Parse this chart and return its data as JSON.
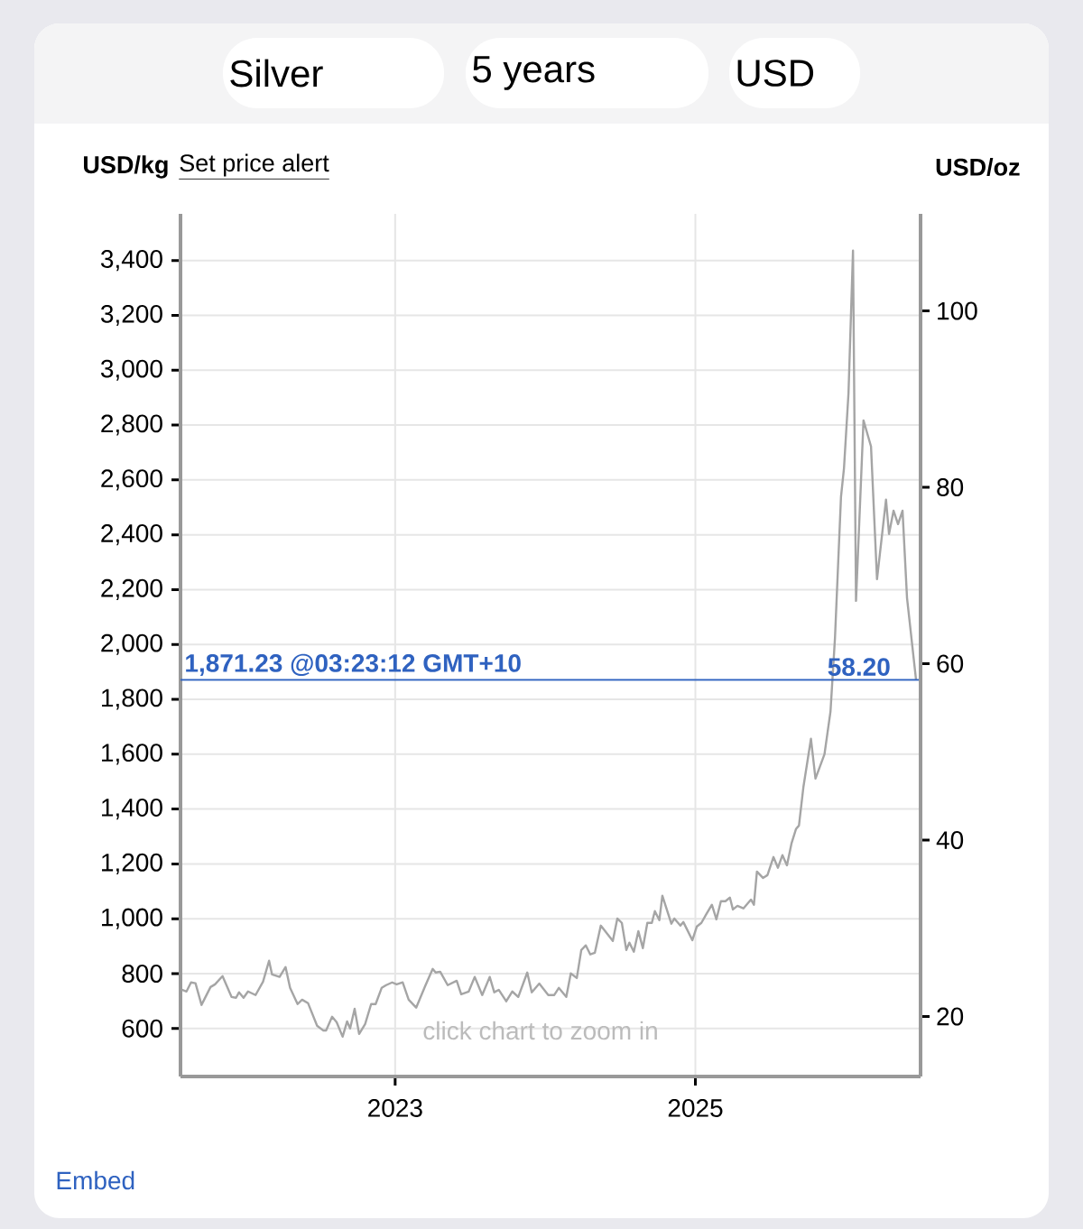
{
  "chart_data": {
    "type": "line",
    "ylabel": "USD/kg",
    "y2label": "USD/oz",
    "annotations": [
      "Silver",
      "5 years",
      "USD",
      "Set price alert",
      "click chart to zoom in",
      "Embed",
      {
        "text": "58.20",
        "x": 2026.09,
        "y": 1871.23
      }
    ],
    "x": [
      2021.58,
      2021.61,
      2021.64,
      2021.67,
      2021.71,
      2021.77,
      2021.8,
      2021.85,
      2021.91,
      2021.94,
      2021.96,
      2021.99,
      2022.02,
      2022.07,
      2022.12,
      2022.16,
      2022.18,
      2022.23,
      2022.27,
      2022.3,
      2022.35,
      2022.38,
      2022.42,
      2022.48,
      2022.52,
      2022.54,
      2022.58,
      2022.61,
      2022.65,
      2022.68,
      2022.7,
      2022.73,
      2022.76,
      2022.8,
      2022.84,
      2022.87,
      2022.91,
      2022.94,
      2022.98,
      2023.01,
      2023.05,
      2023.09,
      2023.14,
      2023.2,
      2023.25,
      2023.27,
      2023.3,
      2023.35,
      2023.41,
      2023.44,
      2023.49,
      2023.53,
      2023.58,
      2023.63,
      2023.66,
      2023.69,
      2023.74,
      2023.78,
      2023.82,
      2023.88,
      2023.91,
      2023.96,
      2024.02,
      2024.06,
      2024.09,
      2024.14,
      2024.17,
      2024.21,
      2024.24,
      2024.27,
      2024.3,
      2024.33,
      2024.37,
      2024.45,
      2024.48,
      2024.51,
      2024.54,
      2024.56,
      2024.59,
      2024.62,
      2024.65,
      2024.68,
      2024.71,
      2024.73,
      2024.76,
      2024.78,
      2024.84,
      2024.86,
      2024.9,
      2024.92,
      2024.98,
      2025.01,
      2025.04,
      2025.07,
      2025.11,
      2025.14,
      2025.17,
      2025.2,
      2025.23,
      2025.25,
      2025.28,
      2025.32,
      2025.37,
      2025.39,
      2025.41,
      2025.45,
      2025.48,
      2025.52,
      2025.55,
      2025.58,
      2025.61,
      2025.64,
      2025.67,
      2025.69,
      2025.72,
      2025.77,
      2025.8,
      2025.86,
      2025.9,
      2025.93,
      2025.97,
      2025.99,
      2026.02,
      2026.05,
      2026.07,
      2026.12,
      2026.17,
      2026.21,
      2026.27,
      2026.29,
      2026.32,
      2026.35,
      2026.38,
      2026.41,
      2026.47
    ],
    "series": [
      {
        "color": "#a5a5a5",
        "values": [
          741,
          735,
          768,
          765,
          686,
          751,
          761,
          791,
          715,
          712,
          732,
          712,
          735,
          722,
          771,
          847,
          797,
          788,
          824,
          748,
          689,
          705,
          692,
          610,
          593,
          593,
          643,
          623,
          570,
          626,
          600,
          672,
          580,
          616,
          689,
          689,
          748,
          758,
          768,
          761,
          768,
          705,
          676,
          755,
          817,
          804,
          807,
          758,
          774,
          725,
          735,
          788,
          722,
          788,
          732,
          741,
          699,
          735,
          715,
          804,
          732,
          764,
          722,
          722,
          748,
          715,
          801,
          784,
          886,
          903,
          870,
          876,
          975,
          919,
          1001,
          985,
          886,
          913,
          880,
          955,
          893,
          985,
          985,
          1028,
          995,
          1084,
          982,
          1001,
          975,
          988,
          922,
          972,
          985,
          1014,
          1051,
          998,
          1064,
          1064,
          1077,
          1034,
          1047,
          1038,
          1070,
          1051,
          1172,
          1149,
          1159,
          1225,
          1186,
          1232,
          1195,
          1274,
          1327,
          1340,
          1482,
          1656,
          1511,
          1600,
          1755,
          2024,
          2538,
          2643,
          2916,
          3436,
          2159,
          2817,
          2722,
          2238,
          2528,
          2403,
          2488,
          2439,
          2488,
          2169,
          1871
        ]
      }
    ],
    "xlim": [
      2021.57,
      2026.5
    ],
    "xticks": [
      2023,
      2025
    ],
    "ylim": [
      425,
      3570
    ],
    "yticks": [
      600,
      800,
      {
        "value": 1000,
        "label": "1,000"
      },
      {
        "value": 1200,
        "label": "1,200"
      },
      {
        "value": 1400,
        "label": "1,400"
      },
      {
        "value": 1600,
        "label": "1,600"
      },
      {
        "value": 1800,
        "label": "1,800"
      },
      {
        "value": 2000,
        "label": "2,000"
      },
      {
        "value": 2200,
        "label": "2,200"
      },
      {
        "value": 2400,
        "label": "2,400"
      },
      {
        "value": 2600,
        "label": "2,600"
      },
      {
        "value": 2800,
        "label": "2,800"
      },
      {
        "value": 3000,
        "label": "3,000"
      },
      {
        "value": 3200,
        "label": "3,200"
      },
      {
        "value": 3400,
        "label": "3,400"
      }
    ],
    "y2lim": [
      13.2,
      111.0
    ],
    "y2ticks": [
      20,
      40,
      60,
      80,
      100
    ],
    "ref_lines": [
      {
        "axis": "y",
        "value": 1871.23,
        "label": "1,871.23 @03:23:12 GMT+10",
        "color": "#2f62c0"
      }
    ],
    "grid": true
  }
}
